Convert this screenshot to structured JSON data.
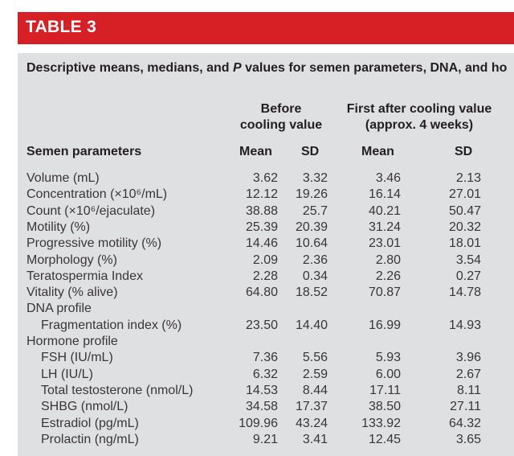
{
  "table_label": "TABLE 3",
  "caption": {
    "part1": "Descriptive means, medians, and ",
    "italic": "P",
    "part2": " values for semen parameters, DNA, and ho"
  },
  "group_headers": {
    "before": [
      "Before",
      "cooling value"
    ],
    "after": [
      "First after cooling value",
      "(approx. 4 weeks)"
    ]
  },
  "column_headers": {
    "label": "Semen parameters",
    "mean_before": "Mean",
    "sd_before": "SD",
    "mean_after": "Mean",
    "sd_after": "SD"
  },
  "rows": [
    {
      "label": "Volume (mL)",
      "mean_before": "3.62",
      "sd_before": "3.32",
      "mean_after": "3.46",
      "sd_after": "2.13"
    },
    {
      "label": "Concentration (×10⁶/mL)",
      "mean_before": "12.12",
      "sd_before": "19.26",
      "mean_after": "16.14",
      "sd_after": "27.01"
    },
    {
      "label": "Count (×10⁶/ejaculate)",
      "mean_before": "38.88",
      "sd_before": "25.7",
      "mean_after": "40.21",
      "sd_after": "50.47"
    },
    {
      "label": "Motility (%)",
      "mean_before": "25.39",
      "sd_before": "20.39",
      "mean_after": "31.24",
      "sd_after": "20.32"
    },
    {
      "label": "Progressive motility (%)",
      "mean_before": "14.46",
      "sd_before": "10.64",
      "mean_after": "23.01",
      "sd_after": "18.01"
    },
    {
      "label": "Morphology (%)",
      "mean_before": "2.09",
      "sd_before": "2.36",
      "mean_after": "2.80",
      "sd_after": "3.54"
    },
    {
      "label": "Teratospermia Index",
      "mean_before": "2.28",
      "sd_before": "0.34",
      "mean_after": "2.26",
      "sd_after": "0.27"
    },
    {
      "label": "Vitality (% alive)",
      "mean_before": "64.80",
      "sd_before": "18.52",
      "mean_after": "70.87",
      "sd_after": "14.78"
    },
    {
      "label": "DNA profile",
      "mean_before": "",
      "sd_before": "",
      "mean_after": "",
      "sd_after": ""
    },
    {
      "label": "Fragmentation index (%)",
      "mean_before": "23.50",
      "sd_before": "14.40",
      "mean_after": "16.99",
      "sd_after": "14.93"
    },
    {
      "label": "Hormone profile",
      "mean_before": "",
      "sd_before": "",
      "mean_after": "",
      "sd_after": ""
    },
    {
      "label": "FSH (IU/mL)",
      "mean_before": "7.36",
      "sd_before": "5.56",
      "mean_after": "5.93",
      "sd_after": "3.96"
    },
    {
      "label": "LH (IU/L)",
      "mean_before": "6.32",
      "sd_before": "2.59",
      "mean_after": "6.00",
      "sd_after": "2.67"
    },
    {
      "label": "Total testosterone (nmol/L)",
      "mean_before": "14.53",
      "sd_before": "8.44",
      "mean_after": "17.11",
      "sd_after": "8.11"
    },
    {
      "label": "SHBG (nmol/L)",
      "mean_before": "34.58",
      "sd_before": "17.37",
      "mean_after": "38.50",
      "sd_after": "27.11"
    },
    {
      "label": "Estradiol (pg/mL)",
      "mean_before": "109.96",
      "sd_before": "43.24",
      "mean_after": "133.92",
      "sd_after": "64.32"
    },
    {
      "label": "Prolactin (ng/mL)",
      "mean_before": "9.21",
      "sd_before": "3.41",
      "mean_after": "12.45",
      "sd_after": "3.65"
    }
  ]
}
